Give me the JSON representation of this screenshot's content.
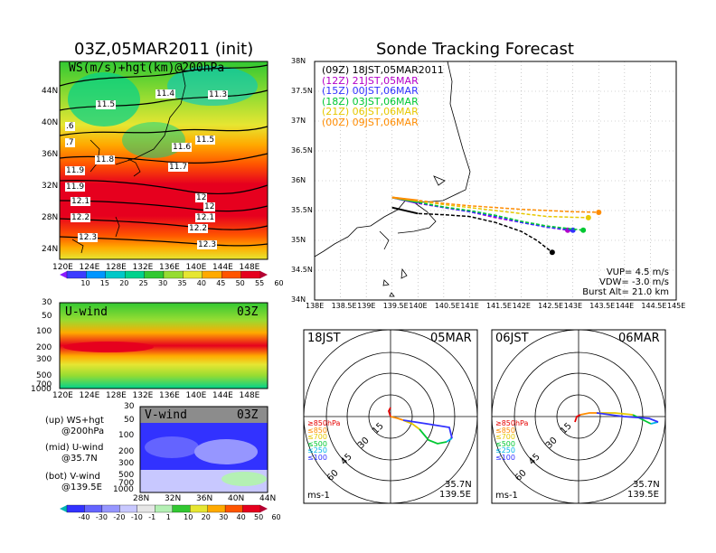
{
  "left_title": "03Z,05MAR2011 (init)",
  "right_title": "Sonde Tracking Forecast",
  "map": {
    "label": "WS(m/s)+hgt(km)@200hPa",
    "lat_ticks": [
      "44N",
      "40N",
      "36N",
      "32N",
      "28N",
      "24N"
    ],
    "lon_ticks": [
      "120E",
      "124E",
      "128E",
      "132E",
      "136E",
      "140E",
      "144E",
      "148E"
    ],
    "contour_labels": [
      "11.4",
      "11.3",
      "11.5",
      ".6",
      "11.5",
      ".7",
      "11.6",
      "11.8",
      "11.7",
      "11.9",
      "12",
      "11.9",
      "12.1",
      "12",
      "12.2",
      "12.1",
      "12.3",
      "12.2",
      "12.3"
    ]
  },
  "ws_colorbar": {
    "labels": [
      "10",
      "15",
      "20",
      "25",
      "30",
      "35",
      "40",
      "45",
      "50",
      "55",
      "60"
    ],
    "colors": [
      "#8c1aff",
      "#3c3cff",
      "#0096ff",
      "#00c8c8",
      "#00d28c",
      "#32c832",
      "#96dc32",
      "#e6e632",
      "#ffaa00",
      "#ff5500",
      "#e6001e",
      "#b40032"
    ]
  },
  "uwind": {
    "tag": "U-wind",
    "time": "03Z",
    "p_ticks": [
      "30",
      "50",
      "100",
      "200",
      "300",
      "500",
      "700",
      "1000"
    ],
    "lon_ticks": [
      "120E",
      "124E",
      "128E",
      "132E",
      "136E",
      "140E",
      "144E",
      "148E"
    ]
  },
  "vwind": {
    "tag": "V-wind",
    "time": "03Z",
    "p_ticks": [
      "30",
      "50",
      "100",
      "200",
      "300",
      "500",
      "700",
      "1000"
    ],
    "lat_ticks": [
      "28N",
      "32N",
      "36N",
      "40N",
      "44N"
    ]
  },
  "vwind_colorbar": {
    "labels": [
      "-40",
      "-30",
      "-20",
      "-10",
      "-1",
      "1",
      "10",
      "20",
      "30",
      "40",
      "50",
      "60"
    ],
    "colors": [
      "#00b4b4",
      "#3232ff",
      "#6464ff",
      "#9696ff",
      "#c8c8ff",
      "#e6e6e6",
      "#b4f0b4",
      "#32c832",
      "#e6e632",
      "#ffaa00",
      "#ff5500",
      "#e6001e",
      "#b40032"
    ]
  },
  "legend_desc": {
    "line1": "(up) WS+hgt",
    "line2": "@200hPa",
    "line3": "(mid) U-wind",
    "line4": "@35.7N",
    "line5": "(bot) V-wind",
    "line6": "@139.5E"
  },
  "chart_data": {
    "type": "line",
    "title": "Sonde Tracking Forecast",
    "xlim": [
      138,
      145
    ],
    "ylim": [
      34,
      38
    ],
    "x_ticks": [
      "138E",
      "138.5E",
      "139E",
      "139.5E",
      "140E",
      "140.5E",
      "141E",
      "141.5E",
      "142E",
      "142.5E",
      "143E",
      "143.5E",
      "144E",
      "144.5E",
      "145E"
    ],
    "y_ticks": [
      "38N",
      "37.5N",
      "37N",
      "36.5N",
      "36N",
      "35.5N",
      "35N",
      "34.5N",
      "34N"
    ],
    "legend": [
      {
        "run": "(09Z)",
        "label": "18JST,05MAR2011",
        "color": "#000000"
      },
      {
        "run": "(12Z)",
        "label": "21JST,05MAR",
        "color": "#b400c8"
      },
      {
        "run": "(15Z)",
        "label": "00JST,06MAR",
        "color": "#3232ff"
      },
      {
        "run": "(18Z)",
        "label": "03JST,06MAR",
        "color": "#00c832"
      },
      {
        "run": "(21Z)",
        "label": "06JST,06MAR",
        "color": "#e6c800"
      },
      {
        "run": "(00Z)",
        "label": "09JST,06MAR",
        "color": "#ff8c00"
      }
    ],
    "series": [
      {
        "name": "18JST,05MAR2011",
        "color": "#000000",
        "x": [
          139.5,
          140.0,
          140.5,
          141.0,
          141.5,
          142.0,
          142.3,
          142.6
        ],
        "y": [
          35.55,
          35.45,
          35.43,
          35.4,
          35.3,
          35.15,
          35.0,
          34.8
        ]
      },
      {
        "name": "21JST,05MAR",
        "color": "#b400c8",
        "x": [
          139.5,
          140.0,
          140.5,
          141.0,
          141.5,
          142.0,
          142.5,
          142.9
        ],
        "y": [
          35.72,
          35.62,
          35.55,
          35.48,
          35.38,
          35.3,
          35.22,
          35.17
        ]
      },
      {
        "name": "00JST,06MAR",
        "color": "#3232ff",
        "x": [
          139.5,
          140.0,
          140.5,
          141.0,
          141.5,
          142.0,
          142.5,
          143.0
        ],
        "y": [
          35.72,
          35.63,
          35.55,
          35.48,
          35.4,
          35.3,
          35.22,
          35.17
        ]
      },
      {
        "name": "03JST,06MAR",
        "color": "#00c832",
        "x": [
          139.5,
          140.0,
          140.5,
          141.0,
          141.5,
          142.0,
          142.5,
          143.2
        ],
        "y": [
          35.72,
          35.64,
          35.56,
          35.5,
          35.42,
          35.32,
          35.24,
          35.17
        ]
      },
      {
        "name": "06JST,06MAR",
        "color": "#e6c800",
        "x": [
          139.5,
          140.0,
          140.5,
          141.0,
          141.5,
          142.0,
          142.5,
          143.3
        ],
        "y": [
          35.72,
          35.66,
          35.6,
          35.55,
          35.5,
          35.45,
          35.4,
          35.38
        ]
      },
      {
        "name": "09JST,06MAR",
        "color": "#ff8c00",
        "x": [
          139.5,
          140.0,
          140.5,
          141.0,
          141.5,
          142.0,
          142.5,
          143.0,
          143.5
        ],
        "y": [
          35.72,
          35.67,
          35.62,
          35.58,
          35.55,
          35.52,
          35.5,
          35.48,
          35.47
        ]
      }
    ],
    "annotations": {
      "vup": "VUP= 4.5 m/s",
      "vdw": "VDW= -3.0 m/s",
      "burst": "Burst Alt= 21.0 km"
    }
  },
  "hodo_left": {
    "time": "18JST",
    "date": "05MAR",
    "ring_labels": [
      "15",
      "30",
      "45",
      "60"
    ],
    "levels": [
      {
        "label": "≥850hPa",
        "color": "#e60000"
      },
      {
        "label": "≤850",
        "color": "#ff8c00"
      },
      {
        "label": "≤700",
        "color": "#e6c800"
      },
      {
        "label": "≤500",
        "color": "#00c832"
      },
      {
        "label": "≤250",
        "color": "#00b4e6"
      },
      {
        "label": "≤100",
        "color": "#3232ff"
      }
    ],
    "unit": "ms-1",
    "lat": "35.7N",
    "lon": "139.5E"
  },
  "hodo_right": {
    "time": "06JST",
    "date": "06MAR",
    "ring_labels": [
      "15",
      "30",
      "45",
      "60"
    ],
    "levels": [
      {
        "label": "≥850hPa",
        "color": "#e60000"
      },
      {
        "label": "≤850",
        "color": "#ff8c00"
      },
      {
        "label": "≤700",
        "color": "#e6c800"
      },
      {
        "label": "≤500",
        "color": "#00c832"
      },
      {
        "label": "≤250",
        "color": "#00b4e6"
      },
      {
        "label": "≤100",
        "color": "#3232ff"
      }
    ],
    "unit": "ms-1",
    "lat": "35.7N",
    "lon": "139.5E"
  }
}
